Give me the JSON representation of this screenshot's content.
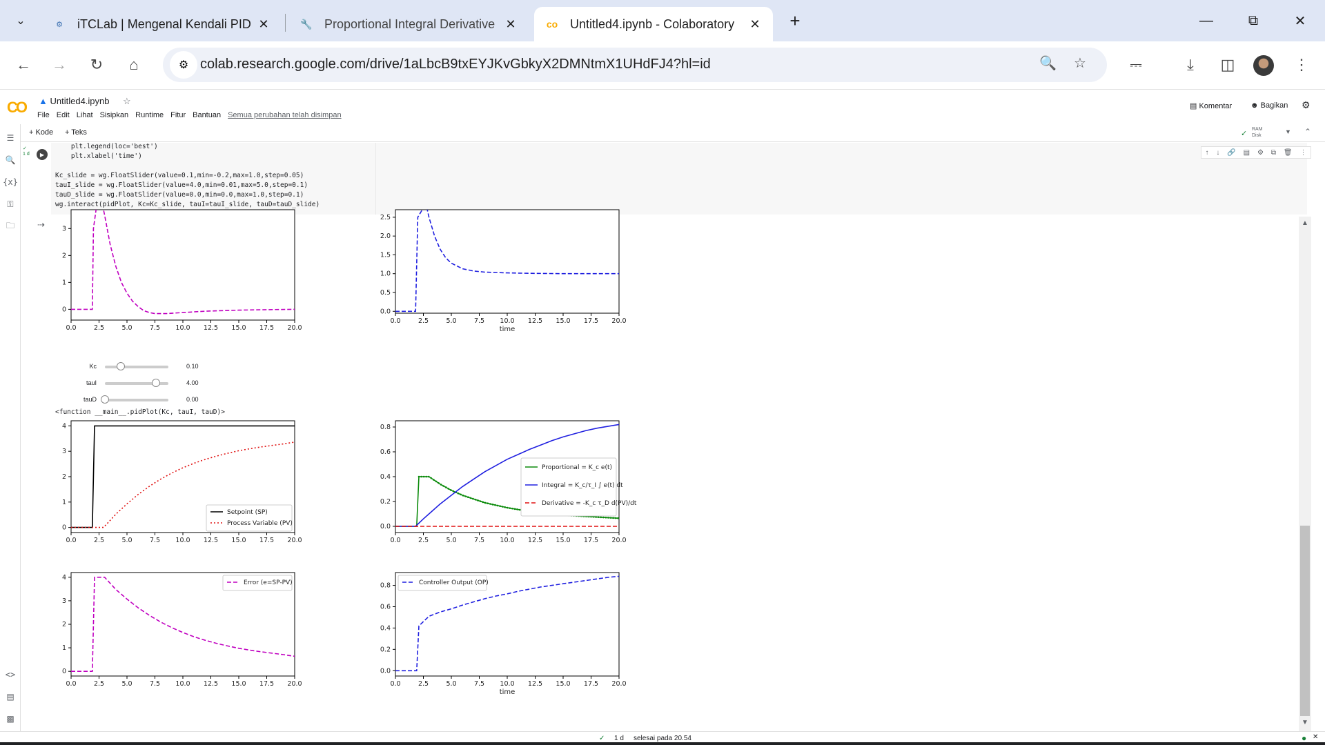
{
  "browser": {
    "tabs": [
      {
        "title": "iTCLab | Mengenal Kendali PID",
        "active": false
      },
      {
        "title": "Proportional Integral Derivative",
        "active": false
      },
      {
        "title": "Untitled4.ipynb - Colaboratory",
        "active": true
      }
    ],
    "url": "colab.research.google.com/drive/1aLbcB9txEYJKvGbkyX2DMNtmX1UHdFJ4?hl=id"
  },
  "colab": {
    "logo": "CO",
    "notebook_title": "Untitled4.ipynb",
    "menus": [
      "File",
      "Edit",
      "Lihat",
      "Sisipkan",
      "Runtime",
      "Fitur",
      "Bantuan"
    ],
    "saved_status": "Semua perubahan telah disimpan",
    "comment_label": "Komentar",
    "share_label": "Bagikan",
    "add_code": "+ Kode",
    "add_text": "+ Teks",
    "ram_label": "RAM",
    "disk_label": "Disk"
  },
  "code_lines": [
    "    plt.legend(loc='best')",
    "    plt.xlabel('time')",
    "",
    "Kc_slide = wg.FloatSlider(value=0.1,min=-0.2,max=1.0,step=0.05)",
    "tauI_slide = wg.FloatSlider(value=4.0,min=0.01,max=5.0,step=0.1)",
    "tauD_slide = wg.FloatSlider(value=0.0,min=0.0,max=1.0,step=0.1)",
    "wg.interact(pidPlot, Kc=Kc_slide, tauI=tauI_slide, tauD=tauD_slide)"
  ],
  "exec_mark": "1 d",
  "widgets": [
    {
      "label": "Kc",
      "value_text": "0.10",
      "value": 0.1,
      "min": -0.2,
      "max": 1.0
    },
    {
      "label": "tauI",
      "value_text": "4.00",
      "value": 4.0,
      "min": 0.01,
      "max": 5.0
    },
    {
      "label": "tauD",
      "value_text": "0.00",
      "value": 0.0,
      "min": 0.0,
      "max": 1.0
    }
  ],
  "function_output": "<function __main__.pidPlot(Kc, tauI, tauD)>",
  "status": {
    "check": "1 d",
    "text": "selesai pada 20.54"
  },
  "chart_data": [
    {
      "id": "prev-error",
      "type": "line",
      "xlabel": "",
      "xlim": [
        0,
        20
      ],
      "ylim": [
        -0.4,
        3.7
      ],
      "xticks": [
        "0.0",
        "2.5",
        "5.0",
        "7.5",
        "10.0",
        "12.5",
        "15.0",
        "17.5",
        "20.0"
      ],
      "yticks": [
        "0",
        "1",
        "2",
        "3"
      ],
      "series": [
        {
          "color": "#c000c0",
          "style": "dashed",
          "x": [
            0,
            1.9,
            2.0,
            2.3,
            2.6,
            3.0,
            3.5,
            4.0,
            4.5,
            5.0,
            5.5,
            6.0,
            6.5,
            7.0,
            7.5,
            8.5,
            10,
            12,
            15,
            18,
            20
          ],
          "y": [
            0,
            0,
            3.0,
            3.9,
            4.3,
            3.5,
            2.4,
            1.6,
            1.0,
            0.6,
            0.3,
            0.1,
            -0.05,
            -0.12,
            -0.16,
            -0.16,
            -0.12,
            -0.07,
            -0.03,
            -0.01,
            0
          ]
        }
      ]
    },
    {
      "id": "prev-op",
      "type": "line",
      "xlabel": "time",
      "xlim": [
        0,
        20
      ],
      "ylim": [
        -0.05,
        2.7
      ],
      "xticks": [
        "0.0",
        "2.5",
        "5.0",
        "7.5",
        "10.0",
        "12.5",
        "15.0",
        "17.5",
        "20.0"
      ],
      "yticks": [
        "0.0",
        "0.5",
        "1.0",
        "1.5",
        "2.0",
        "2.5"
      ],
      "series": [
        {
          "color": "#1f1fe0",
          "style": "dashed",
          "x": [
            0,
            1.8,
            2.0,
            2.4,
            2.7,
            3.0,
            3.5,
            4.0,
            4.5,
            5.0,
            6.0,
            7.0,
            8.0,
            10,
            12,
            15,
            18,
            20
          ],
          "y": [
            0,
            0,
            2.5,
            2.7,
            2.9,
            2.5,
            2.0,
            1.65,
            1.42,
            1.28,
            1.13,
            1.07,
            1.04,
            1.02,
            1.01,
            1.0,
            1.0,
            1.0
          ]
        }
      ]
    },
    {
      "id": "sp-pv",
      "type": "line",
      "xlabel": "",
      "xlim": [
        0,
        20
      ],
      "ylim": [
        -0.2,
        4.2
      ],
      "xticks": [
        "0.0",
        "2.5",
        "5.0",
        "7.5",
        "10.0",
        "12.5",
        "15.0",
        "17.5",
        "20.0"
      ],
      "yticks": [
        "0",
        "1",
        "2",
        "3",
        "4"
      ],
      "legend": "lower-right",
      "series": [
        {
          "name": "Setpoint (SP)",
          "color": "#000000",
          "style": "solid",
          "x": [
            0,
            1.9,
            2.1,
            20
          ],
          "y": [
            0,
            0,
            4,
            4
          ]
        },
        {
          "name": "Process Variable (PV)",
          "color": "#e01010",
          "style": "dotted",
          "x": [
            0,
            2.9,
            3.5,
            4,
            5,
            6,
            7,
            8,
            9,
            10,
            11,
            12,
            13,
            14,
            15,
            16,
            17,
            18,
            19,
            20
          ],
          "y": [
            0,
            0,
            0.28,
            0.52,
            0.93,
            1.3,
            1.62,
            1.9,
            2.14,
            2.35,
            2.53,
            2.68,
            2.81,
            2.92,
            3.02,
            3.1,
            3.17,
            3.23,
            3.29,
            3.36
          ]
        }
      ]
    },
    {
      "id": "pid-terms",
      "type": "line",
      "xlabel": "",
      "xlim": [
        0,
        20
      ],
      "ylim": [
        -0.05,
        0.85
      ],
      "xticks": [
        "0.0",
        "2.5",
        "5.0",
        "7.5",
        "10.0",
        "12.5",
        "15.0",
        "17.5",
        "20.0"
      ],
      "yticks": [
        "0.0",
        "0.2",
        "0.4",
        "0.6",
        "0.8"
      ],
      "legend": "center-right",
      "series": [
        {
          "name": "Proportional",
          "color": "#0a8a0a",
          "style": "solid-marker",
          "x": [
            0,
            1.9,
            2.1,
            3.0,
            4,
            5,
            6,
            7,
            8,
            9,
            10,
            11,
            12,
            13,
            14,
            15,
            16,
            17,
            18,
            19,
            20
          ],
          "y": [
            0,
            0,
            0.4,
            0.4,
            0.34,
            0.29,
            0.25,
            0.22,
            0.19,
            0.17,
            0.15,
            0.135,
            0.12,
            0.11,
            0.1,
            0.09,
            0.085,
            0.08,
            0.075,
            0.07,
            0.065
          ]
        },
        {
          "name": "Integral",
          "color": "#1f1fe0",
          "style": "solid",
          "x": [
            0,
            1.8,
            2.5,
            3,
            4,
            5,
            6,
            7,
            8,
            9,
            10,
            11,
            12,
            13,
            14,
            15,
            16,
            17,
            18,
            19,
            20
          ],
          "y": [
            0,
            0,
            0.06,
            0.1,
            0.18,
            0.25,
            0.32,
            0.38,
            0.44,
            0.49,
            0.54,
            0.58,
            0.62,
            0.655,
            0.69,
            0.72,
            0.745,
            0.77,
            0.79,
            0.805,
            0.82
          ]
        },
        {
          "name": "Derivative",
          "color": "#e01010",
          "style": "dashed",
          "x": [
            0,
            20
          ],
          "y": [
            0,
            0
          ]
        }
      ],
      "legend_labels": [
        "Proportional = K_c e(t)",
        "Integral = K_c/τ_I ∫ e(t) dt",
        "Derivative = -K_c τ_D d(PV)/dt"
      ]
    },
    {
      "id": "error",
      "type": "line",
      "xlabel": "",
      "xlim": [
        0,
        20
      ],
      "ylim": [
        -0.2,
        4.2
      ],
      "xticks": [
        "0.0",
        "2.5",
        "5.0",
        "7.5",
        "10.0",
        "12.5",
        "15.0",
        "17.5",
        "20.0"
      ],
      "yticks": [
        "0",
        "1",
        "2",
        "3",
        "4"
      ],
      "legend": "top-right",
      "series": [
        {
          "name": "Error (e=SP-PV)",
          "color": "#c000c0",
          "style": "dashed",
          "x": [
            0,
            1.9,
            2.1,
            3.0,
            4,
            5,
            6,
            7,
            8,
            9,
            10,
            11,
            12,
            13,
            14,
            15,
            16,
            17,
            18,
            19,
            20
          ],
          "y": [
            0,
            0,
            4,
            4,
            3.48,
            3.07,
            2.7,
            2.38,
            2.1,
            1.86,
            1.65,
            1.47,
            1.32,
            1.19,
            1.08,
            0.98,
            0.9,
            0.83,
            0.77,
            0.71,
            0.64
          ]
        }
      ]
    },
    {
      "id": "controller-output",
      "type": "line",
      "xlabel": "time",
      "xlim": [
        0,
        20
      ],
      "ylim": [
        -0.05,
        0.92
      ],
      "xticks": [
        "0.0",
        "2.5",
        "5.0",
        "7.5",
        "10.0",
        "12.5",
        "15.0",
        "17.5",
        "20.0"
      ],
      "yticks": [
        "0.0",
        "0.2",
        "0.4",
        "0.6",
        "0.8"
      ],
      "legend": "top-left",
      "series": [
        {
          "name": "Controller Output (OP)",
          "color": "#1f1fe0",
          "style": "dashed",
          "x": [
            0,
            1.9,
            2.1,
            3.0,
            4,
            5,
            6,
            7,
            8,
            9,
            10,
            11,
            12,
            13,
            14,
            15,
            16,
            17,
            18,
            19,
            20
          ],
          "y": [
            0,
            0,
            0.42,
            0.51,
            0.55,
            0.58,
            0.615,
            0.645,
            0.675,
            0.7,
            0.72,
            0.745,
            0.765,
            0.785,
            0.8,
            0.815,
            0.83,
            0.845,
            0.86,
            0.875,
            0.885
          ]
        }
      ]
    }
  ]
}
